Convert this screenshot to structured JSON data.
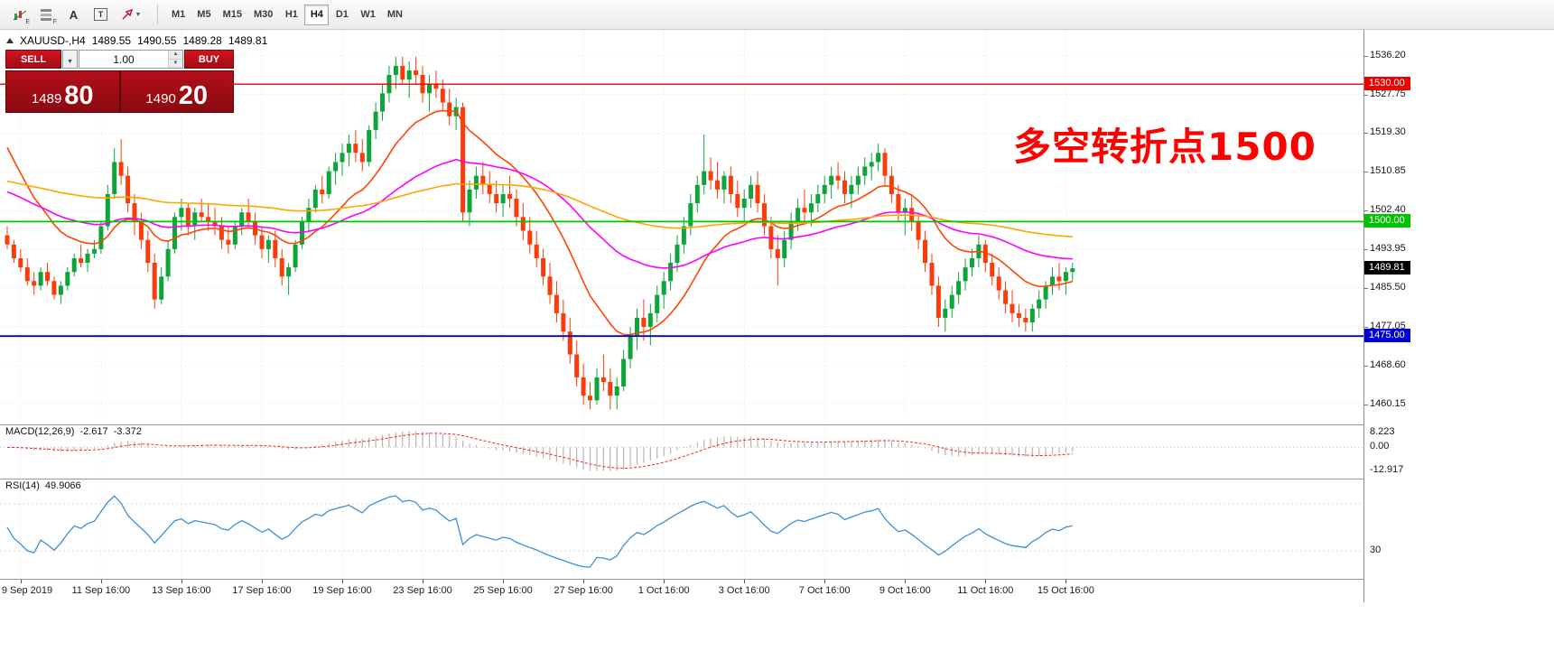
{
  "toolbar": {
    "tools": {
      "indicators_sub": "E",
      "objects_sub": "F",
      "text_tool": "A",
      "textbox_tool": "T"
    },
    "timeframes": [
      "M1",
      "M5",
      "M15",
      "M30",
      "H1",
      "H4",
      "D1",
      "W1",
      "MN"
    ],
    "active_timeframe": "H4"
  },
  "header": {
    "symbol": "XAUUSD-,H4",
    "open": "1489.55",
    "high": "1490.55",
    "low": "1489.28",
    "close": "1489.81"
  },
  "trade_panel": {
    "sell_label": "SELL",
    "buy_label": "BUY",
    "volume": "1.00",
    "sell_price_base": "1489",
    "sell_price_pips": "80",
    "buy_price_base": "1490",
    "buy_price_pips": "20"
  },
  "annotation": {
    "text": "多空转折点1500",
    "color": "#ff0000"
  },
  "price_axis": {
    "labels": [
      "1536.20",
      "1527.75",
      "1519.30",
      "1510.85",
      "1502.40",
      "1493.95",
      "1485.50",
      "1477.05",
      "1468.60",
      "1460.15"
    ]
  },
  "price_tags": [
    {
      "label": "1530.00",
      "value": 1530.0,
      "bg": "#ee0000"
    },
    {
      "label": "1500.00",
      "value": 1500.0,
      "bg": "#00c400"
    },
    {
      "label": "1489.81",
      "value": 1489.81,
      "bg": "#000000"
    },
    {
      "label": "1475.00",
      "value": 1475.0,
      "bg": "#0000d2"
    }
  ],
  "time_axis": [
    {
      "label": "9 Sep 2019",
      "index": 2
    },
    {
      "label": "11 Sep 16:00",
      "index": 14
    },
    {
      "label": "13 Sep 16:00",
      "index": 26
    },
    {
      "label": "17 Sep 16:00",
      "index": 38
    },
    {
      "label": "19 Sep 16:00",
      "index": 50
    },
    {
      "label": "23 Sep 16:00",
      "index": 62
    },
    {
      "label": "25 Sep 16:00",
      "index": 74
    },
    {
      "label": "27 Sep 16:00",
      "index": 86
    },
    {
      "label": "1 Oct 16:00",
      "index": 98
    },
    {
      "label": "3 Oct 16:00",
      "index": 110
    },
    {
      "label": "7 Oct 16:00",
      "index": 122
    },
    {
      "label": "9 Oct 16:00",
      "index": 134
    },
    {
      "label": "11 Oct 16:00",
      "index": 146
    },
    {
      "label": "15 Oct 16:00",
      "index": 158
    }
  ],
  "indicators": {
    "macd": {
      "label": "MACD(12,26,9)",
      "value": "-2.617",
      "signal": "-3.372",
      "scale": [
        {
          "label": "8.223",
          "value": 8.223
        },
        {
          "label": "0.00",
          "value": 0
        },
        {
          "label": "-12.917",
          "value": -12.917
        }
      ]
    },
    "rsi": {
      "label": "RSI(14)",
      "value": "49.9066",
      "scale": [
        {
          "label": "30",
          "value": 30
        }
      ],
      "levels": [
        30,
        70
      ]
    }
  },
  "chart_data": {
    "type": "candlestick",
    "symbol": "XAUUSD-",
    "timeframe": "H4",
    "y_range": [
      1457.5,
      1539.5
    ],
    "bull_color": "#0ca53a",
    "bear_color": "#fb3b09",
    "hlines": [
      {
        "price": 1530,
        "color": "#ee0000",
        "width": 1.4
      },
      {
        "price": 1500,
        "color": "#00c400",
        "width": 1.8
      },
      {
        "price": 1475,
        "color": "#0000cc",
        "width": 1.8
      }
    ],
    "moving_averages": [
      {
        "name": "fast",
        "period": 16,
        "seed": 1519,
        "color": "#ff4500"
      },
      {
        "name": "medium",
        "period": 48,
        "seed": 1507,
        "color": "#ff00ff"
      },
      {
        "name": "slow",
        "period": 130,
        "seed": 1509,
        "color": "#ffa500"
      }
    ],
    "candles": [
      [
        1497,
        1499,
        1494,
        1495
      ],
      [
        1495,
        1496,
        1491,
        1492
      ],
      [
        1492,
        1494,
        1489,
        1490
      ],
      [
        1490,
        1492,
        1486,
        1487
      ],
      [
        1487,
        1489,
        1484,
        1486
      ],
      [
        1486,
        1490,
        1485,
        1489
      ],
      [
        1489,
        1491,
        1486,
        1487
      ],
      [
        1487,
        1488,
        1483,
        1484
      ],
      [
        1484,
        1487,
        1482,
        1486
      ],
      [
        1486,
        1490,
        1485,
        1489
      ],
      [
        1489,
        1493,
        1488,
        1492
      ],
      [
        1492,
        1495,
        1490,
        1491
      ],
      [
        1491,
        1494,
        1489,
        1493
      ],
      [
        1493,
        1496,
        1492,
        1494
      ],
      [
        1494,
        1500,
        1493,
        1499
      ],
      [
        1499,
        1508,
        1498,
        1506
      ],
      [
        1506,
        1516,
        1505,
        1513
      ],
      [
        1513,
        1518,
        1508,
        1510
      ],
      [
        1510,
        1512,
        1502,
        1504
      ],
      [
        1504,
        1506,
        1497,
        1500
      ],
      [
        1500,
        1502,
        1494,
        1496
      ],
      [
        1496,
        1498,
        1489,
        1491
      ],
      [
        1491,
        1493,
        1481,
        1483
      ],
      [
        1483,
        1490,
        1482,
        1488
      ],
      [
        1488,
        1496,
        1487,
        1494
      ],
      [
        1494,
        1502,
        1493,
        1501
      ],
      [
        1501,
        1505,
        1498,
        1503
      ],
      [
        1503,
        1504,
        1497,
        1499
      ],
      [
        1499,
        1503,
        1496,
        1502
      ],
      [
        1502,
        1505,
        1500,
        1501
      ],
      [
        1501,
        1504,
        1498,
        1500
      ],
      [
        1500,
        1503,
        1497,
        1499
      ],
      [
        1499,
        1501,
        1494,
        1496
      ],
      [
        1496,
        1499,
        1493,
        1495
      ],
      [
        1495,
        1500,
        1494,
        1499
      ],
      [
        1499,
        1503,
        1497,
        1502
      ],
      [
        1502,
        1505,
        1499,
        1500
      ],
      [
        1500,
        1502,
        1495,
        1497
      ],
      [
        1497,
        1499,
        1492,
        1494
      ],
      [
        1494,
        1497,
        1491,
        1496
      ],
      [
        1496,
        1498,
        1490,
        1492
      ],
      [
        1492,
        1494,
        1486,
        1488
      ],
      [
        1488,
        1491,
        1484,
        1490
      ],
      [
        1490,
        1496,
        1489,
        1495
      ],
      [
        1495,
        1501,
        1494,
        1500
      ],
      [
        1500,
        1505,
        1498,
        1503
      ],
      [
        1503,
        1508,
        1502,
        1507
      ],
      [
        1507,
        1510,
        1504,
        1506
      ],
      [
        1506,
        1512,
        1505,
        1511
      ],
      [
        1511,
        1515,
        1508,
        1513
      ],
      [
        1513,
        1517,
        1510,
        1515
      ],
      [
        1515,
        1519,
        1512,
        1517
      ],
      [
        1517,
        1520,
        1513,
        1515
      ],
      [
        1515,
        1518,
        1511,
        1513
      ],
      [
        1513,
        1521,
        1512,
        1520
      ],
      [
        1520,
        1526,
        1518,
        1524
      ],
      [
        1524,
        1530,
        1522,
        1528
      ],
      [
        1528,
        1534,
        1526,
        1532
      ],
      [
        1532,
        1536,
        1529,
        1534
      ],
      [
        1534,
        1536,
        1530,
        1531
      ],
      [
        1531,
        1535,
        1527,
        1533
      ],
      [
        1533,
        1536,
        1530,
        1532
      ],
      [
        1532,
        1534,
        1526,
        1528
      ],
      [
        1528,
        1532,
        1524,
        1530
      ],
      [
        1530,
        1533,
        1527,
        1529
      ],
      [
        1529,
        1531,
        1524,
        1526
      ],
      [
        1526,
        1529,
        1521,
        1523
      ],
      [
        1523,
        1527,
        1520,
        1525
      ],
      [
        1525,
        1526,
        1500,
        1502
      ],
      [
        1502,
        1509,
        1499,
        1507
      ],
      [
        1507,
        1512,
        1505,
        1510
      ],
      [
        1510,
        1513,
        1506,
        1508
      ],
      [
        1508,
        1511,
        1504,
        1506
      ],
      [
        1506,
        1509,
        1502,
        1504
      ],
      [
        1504,
        1508,
        1501,
        1506
      ],
      [
        1506,
        1510,
        1503,
        1505
      ],
      [
        1505,
        1507,
        1499,
        1501
      ],
      [
        1501,
        1504,
        1496,
        1498
      ],
      [
        1498,
        1501,
        1493,
        1495
      ],
      [
        1495,
        1498,
        1490,
        1492
      ],
      [
        1492,
        1494,
        1486,
        1488
      ],
      [
        1488,
        1491,
        1482,
        1484
      ],
      [
        1484,
        1487,
        1478,
        1480
      ],
      [
        1480,
        1483,
        1474,
        1476
      ],
      [
        1476,
        1479,
        1469,
        1471
      ],
      [
        1471,
        1474,
        1464,
        1466
      ],
      [
        1466,
        1469,
        1460,
        1462
      ],
      [
        1462,
        1465,
        1459,
        1461
      ],
      [
        1461,
        1468,
        1460,
        1466
      ],
      [
        1466,
        1471,
        1463,
        1465
      ],
      [
        1465,
        1468,
        1459,
        1462
      ],
      [
        1462,
        1466,
        1459,
        1464
      ],
      [
        1464,
        1472,
        1463,
        1470
      ],
      [
        1470,
        1477,
        1468,
        1475
      ],
      [
        1475,
        1481,
        1472,
        1479
      ],
      [
        1479,
        1483,
        1474,
        1477
      ],
      [
        1477,
        1482,
        1473,
        1480
      ],
      [
        1480,
        1486,
        1478,
        1484
      ],
      [
        1484,
        1489,
        1481,
        1487
      ],
      [
        1487,
        1493,
        1485,
        1491
      ],
      [
        1491,
        1497,
        1489,
        1495
      ],
      [
        1495,
        1501,
        1493,
        1499
      ],
      [
        1499,
        1506,
        1497,
        1504
      ],
      [
        1504,
        1510,
        1502,
        1508
      ],
      [
        1508,
        1519,
        1506,
        1511
      ],
      [
        1511,
        1514,
        1507,
        1509
      ],
      [
        1509,
        1513,
        1505,
        1507
      ],
      [
        1507,
        1511,
        1504,
        1510
      ],
      [
        1510,
        1512,
        1504,
        1506
      ],
      [
        1506,
        1509,
        1501,
        1503
      ],
      [
        1503,
        1507,
        1500,
        1505
      ],
      [
        1505,
        1510,
        1503,
        1508
      ],
      [
        1508,
        1511,
        1502,
        1504
      ],
      [
        1504,
        1506,
        1497,
        1499
      ],
      [
        1499,
        1501,
        1492,
        1494
      ],
      [
        1494,
        1497,
        1486,
        1492
      ],
      [
        1492,
        1498,
        1490,
        1496
      ],
      [
        1496,
        1502,
        1494,
        1500
      ],
      [
        1500,
        1505,
        1498,
        1503
      ],
      [
        1503,
        1507,
        1500,
        1502
      ],
      [
        1502,
        1506,
        1499,
        1504
      ],
      [
        1504,
        1508,
        1502,
        1506
      ],
      [
        1506,
        1510,
        1504,
        1508
      ],
      [
        1508,
        1512,
        1505,
        1510
      ],
      [
        1510,
        1513,
        1507,
        1509
      ],
      [
        1509,
        1511,
        1504,
        1506
      ],
      [
        1506,
        1510,
        1503,
        1508
      ],
      [
        1508,
        1512,
        1506,
        1510
      ],
      [
        1510,
        1514,
        1508,
        1512
      ],
      [
        1512,
        1515,
        1509,
        1513
      ],
      [
        1513,
        1517,
        1511,
        1515
      ],
      [
        1515,
        1516,
        1508,
        1510
      ],
      [
        1510,
        1512,
        1504,
        1506
      ],
      [
        1506,
        1508,
        1500,
        1502
      ],
      [
        1502,
        1505,
        1497,
        1503
      ],
      [
        1503,
        1506,
        1498,
        1500
      ],
      [
        1500,
        1502,
        1494,
        1496
      ],
      [
        1496,
        1498,
        1489,
        1491
      ],
      [
        1491,
        1493,
        1484,
        1486
      ],
      [
        1486,
        1488,
        1477,
        1479
      ],
      [
        1479,
        1483,
        1476,
        1481
      ],
      [
        1481,
        1486,
        1479,
        1484
      ],
      [
        1484,
        1489,
        1482,
        1487
      ],
      [
        1487,
        1492,
        1485,
        1490
      ],
      [
        1490,
        1494,
        1488,
        1492
      ],
      [
        1492,
        1497,
        1490,
        1495
      ],
      [
        1495,
        1496,
        1489,
        1491
      ],
      [
        1491,
        1493,
        1486,
        1488
      ],
      [
        1488,
        1490,
        1483,
        1485
      ],
      [
        1485,
        1487,
        1480,
        1482
      ],
      [
        1482,
        1485,
        1478,
        1480
      ],
      [
        1480,
        1482,
        1477,
        1479
      ],
      [
        1479,
        1481,
        1476,
        1478
      ],
      [
        1478,
        1482,
        1476,
        1481
      ],
      [
        1481,
        1485,
        1479,
        1483
      ],
      [
        1483,
        1487,
        1481,
        1486
      ],
      [
        1486,
        1490,
        1484,
        1488
      ],
      [
        1488,
        1491,
        1485,
        1487
      ],
      [
        1487,
        1490,
        1484,
        1489
      ],
      [
        1489,
        1491,
        1487,
        1489.8
      ]
    ]
  }
}
